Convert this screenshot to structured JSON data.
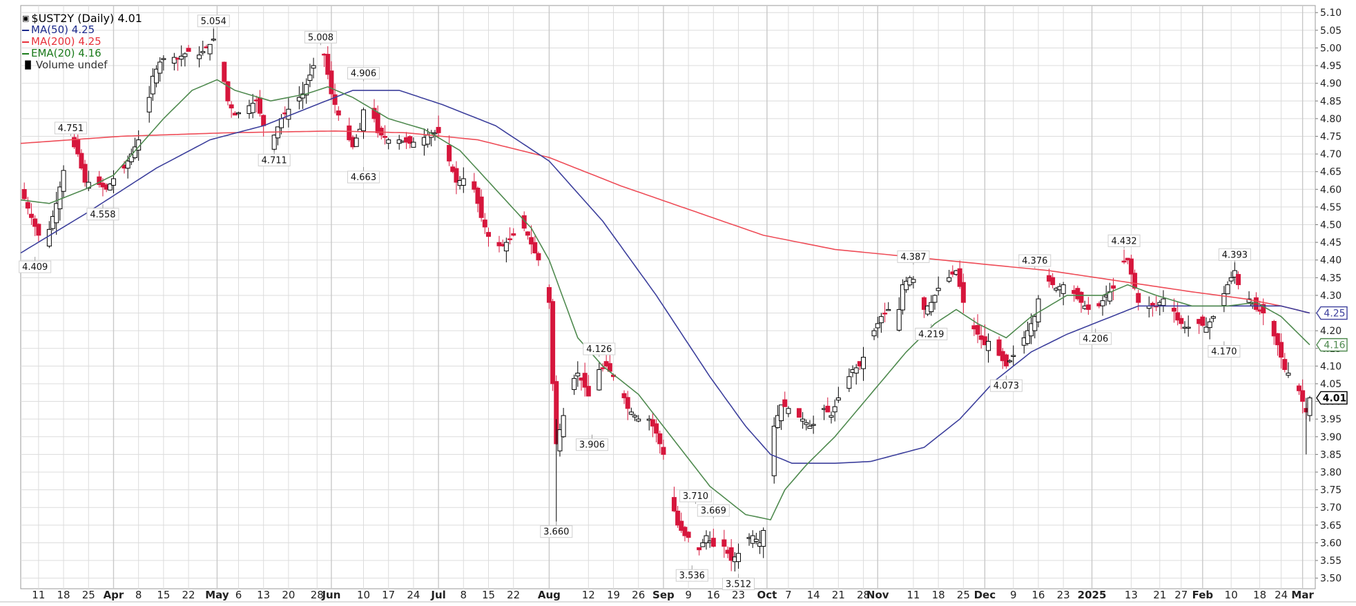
{
  "chart_data": {
    "type": "candlestick",
    "title": "$UST2Y (Daily) 4.01",
    "last_value": "4.01",
    "legend": [
      {
        "name": "MA(50)",
        "value": "4.25",
        "color": "#1c2a8c",
        "kind": "line"
      },
      {
        "name": "MA(200)",
        "value": "4.25",
        "color": "#e8303a",
        "kind": "line"
      },
      {
        "name": "EMA(20)",
        "value": "4.16",
        "color": "#1a7a1a",
        "kind": "line"
      },
      {
        "name": "Volume undef",
        "value": "",
        "color": "#333333",
        "kind": "bars"
      }
    ],
    "colors": {
      "up_candle": "#000000",
      "down_candle": "#d6163c",
      "ma50": "#3c3f9c",
      "ma200": "#ee4c57",
      "ema20": "#4f8a4f",
      "grid": "#dcdcdc",
      "background": "#ffffff"
    },
    "ylim": [
      3.47,
      5.12
    ],
    "y_ticks": [
      "5.10",
      "5.05",
      "5.00",
      "4.95",
      "4.90",
      "4.85",
      "4.80",
      "4.75",
      "4.70",
      "4.65",
      "4.60",
      "4.55",
      "4.50",
      "4.45",
      "4.40",
      "4.35",
      "4.30",
      "4.25",
      "4.20",
      "4.15",
      "4.10",
      "4.05",
      "4.00",
      "3.95",
      "3.90",
      "3.85",
      "3.80",
      "3.75",
      "3.70",
      "3.65",
      "3.60",
      "3.55",
      "3.50"
    ],
    "x_ticks": [
      {
        "label": "11",
        "day": 7,
        "bold": false
      },
      {
        "label": "18",
        "day": 14,
        "bold": false
      },
      {
        "label": "25",
        "day": 21,
        "bold": false
      },
      {
        "label": "Apr",
        "day": 28,
        "bold": true
      },
      {
        "label": "8",
        "day": 35,
        "bold": false
      },
      {
        "label": "15",
        "day": 42,
        "bold": false
      },
      {
        "label": "22",
        "day": 49,
        "bold": false
      },
      {
        "label": "May",
        "day": 57,
        "bold": true
      },
      {
        "label": "6",
        "day": 63,
        "bold": false
      },
      {
        "label": "13",
        "day": 70,
        "bold": false
      },
      {
        "label": "20",
        "day": 77,
        "bold": false
      },
      {
        "label": "28",
        "day": 85,
        "bold": false
      },
      {
        "label": "Jun",
        "day": 89,
        "bold": true
      },
      {
        "label": "10",
        "day": 98,
        "bold": false
      },
      {
        "label": "17",
        "day": 105,
        "bold": false
      },
      {
        "label": "24",
        "day": 112,
        "bold": false
      },
      {
        "label": "Jul",
        "day": 119,
        "bold": true
      },
      {
        "label": "8",
        "day": 126,
        "bold": false
      },
      {
        "label": "15",
        "day": 133,
        "bold": false
      },
      {
        "label": "22",
        "day": 140,
        "bold": false
      },
      {
        "label": "Aug",
        "day": 150,
        "bold": true
      },
      {
        "label": "12",
        "day": 161,
        "bold": false
      },
      {
        "label": "19",
        "day": 168,
        "bold": false
      },
      {
        "label": "26",
        "day": 175,
        "bold": false
      },
      {
        "label": "Sep",
        "day": 182,
        "bold": true
      },
      {
        "label": "9",
        "day": 189,
        "bold": false
      },
      {
        "label": "16",
        "day": 196,
        "bold": false
      },
      {
        "label": "23",
        "day": 203,
        "bold": false
      },
      {
        "label": "Oct",
        "day": 211,
        "bold": true
      },
      {
        "label": "7",
        "day": 217,
        "bold": false
      },
      {
        "label": "14",
        "day": 224,
        "bold": false
      },
      {
        "label": "21",
        "day": 231,
        "bold": false
      },
      {
        "label": "28",
        "day": 238,
        "bold": false
      },
      {
        "label": "Nov",
        "day": 242,
        "bold": true
      },
      {
        "label": "11",
        "day": 252,
        "bold": false
      },
      {
        "label": "18",
        "day": 259,
        "bold": false
      },
      {
        "label": "25",
        "day": 266,
        "bold": false
      },
      {
        "label": "Dec",
        "day": 272,
        "bold": true
      },
      {
        "label": "9",
        "day": 280,
        "bold": false
      },
      {
        "label": "16",
        "day": 287,
        "bold": false
      },
      {
        "label": "23",
        "day": 294,
        "bold": false
      },
      {
        "label": "2025",
        "day": 302,
        "bold": true
      },
      {
        "label": "13",
        "day": 313,
        "bold": false
      },
      {
        "label": "21",
        "day": 321,
        "bold": false
      },
      {
        "label": "27",
        "day": 327,
        "bold": false
      },
      {
        "label": "Feb",
        "day": 333,
        "bold": true
      },
      {
        "label": "10",
        "day": 341,
        "bold": false
      },
      {
        "label": "18",
        "day": 349,
        "bold": false
      },
      {
        "label": "24",
        "day": 355,
        "bold": false
      },
      {
        "label": "Mar",
        "day": 361,
        "bold": true
      }
    ],
    "x_range_days": [
      2,
      363
    ],
    "price_keypoints": [
      [
        2,
        4.6
      ],
      [
        5,
        4.52
      ],
      [
        7,
        4.47
      ],
      [
        9,
        4.45
      ],
      [
        12,
        4.56
      ],
      [
        15,
        4.7
      ],
      [
        16,
        4.74
      ],
      [
        18,
        4.7
      ],
      [
        20,
        4.62
      ],
      [
        23,
        4.62
      ],
      [
        26,
        4.6
      ],
      [
        28,
        4.63
      ],
      [
        31,
        4.66
      ],
      [
        33,
        4.7
      ],
      [
        35,
        4.74
      ],
      [
        37,
        4.8
      ],
      [
        39,
        4.92
      ],
      [
        41,
        4.96
      ],
      [
        43,
        4.98
      ],
      [
        46,
        4.97
      ],
      [
        49,
        4.99
      ],
      [
        52,
        4.98
      ],
      [
        55,
        5.01
      ],
      [
        57,
        5.04
      ],
      [
        58,
        4.96
      ],
      [
        60,
        4.85
      ],
      [
        62,
        4.81
      ],
      [
        65,
        4.83
      ],
      [
        68,
        4.85
      ],
      [
        70,
        4.78
      ],
      [
        72,
        4.73
      ],
      [
        75,
        4.8
      ],
      [
        78,
        4.84
      ],
      [
        81,
        4.87
      ],
      [
        84,
        4.95
      ],
      [
        85,
        4.99
      ],
      [
        87,
        4.98
      ],
      [
        89,
        4.87
      ],
      [
        92,
        4.78
      ],
      [
        95,
        4.72
      ],
      [
        97,
        4.77
      ],
      [
        99,
        4.88
      ],
      [
        102,
        4.76
      ],
      [
        105,
        4.74
      ],
      [
        108,
        4.74
      ],
      [
        111,
        4.73
      ],
      [
        114,
        4.74
      ],
      [
        117,
        4.76
      ],
      [
        119,
        4.76
      ],
      [
        122,
        4.68
      ],
      [
        124,
        4.62
      ],
      [
        126,
        4.63
      ],
      [
        129,
        4.6
      ],
      [
        131,
        4.52
      ],
      [
        134,
        4.44
      ],
      [
        137,
        4.44
      ],
      [
        140,
        4.47
      ],
      [
        142,
        4.51
      ],
      [
        144,
        4.47
      ],
      [
        146,
        4.42
      ],
      [
        148,
        4.38
      ],
      [
        150,
        4.28
      ],
      [
        151,
        4.05
      ],
      [
        152,
        3.88
      ],
      [
        154,
        3.96
      ],
      [
        156,
        4.05
      ],
      [
        158,
        4.08
      ],
      [
        160,
        4.04
      ],
      [
        162,
        3.99
      ],
      [
        164,
        4.09
      ],
      [
        166,
        4.1
      ],
      [
        168,
        4.07
      ],
      [
        170,
        4.04
      ],
      [
        172,
        3.98
      ],
      [
        175,
        3.95
      ],
      [
        178,
        3.95
      ],
      [
        180,
        3.91
      ],
      [
        182,
        3.85
      ],
      [
        184,
        3.73
      ],
      [
        186,
        3.65
      ],
      [
        188,
        3.62
      ],
      [
        190,
        3.61
      ],
      [
        192,
        3.58
      ],
      [
        194,
        3.62
      ],
      [
        196,
        3.59
      ],
      [
        199,
        3.59
      ],
      [
        201,
        3.55
      ],
      [
        203,
        3.57
      ],
      [
        205,
        3.61
      ],
      [
        207,
        3.62
      ],
      [
        209,
        3.6
      ],
      [
        211,
        3.67
      ],
      [
        213,
        3.93
      ],
      [
        215,
        3.99
      ],
      [
        217,
        3.98
      ],
      [
        219,
        3.96
      ],
      [
        221,
        3.95
      ],
      [
        223,
        3.93
      ],
      [
        225,
        3.94
      ],
      [
        227,
        3.98
      ],
      [
        229,
        3.96
      ],
      [
        231,
        4.01
      ],
      [
        233,
        4.05
      ],
      [
        235,
        4.09
      ],
      [
        237,
        4.1
      ],
      [
        239,
        4.15
      ],
      [
        241,
        4.2
      ],
      [
        243,
        4.24
      ],
      [
        245,
        4.26
      ],
      [
        247,
        4.19
      ],
      [
        249,
        4.33
      ],
      [
        251,
        4.35
      ],
      [
        253,
        4.34
      ],
      [
        255,
        4.26
      ],
      [
        257,
        4.28
      ],
      [
        259,
        4.32
      ],
      [
        261,
        4.34
      ],
      [
        263,
        4.36
      ],
      [
        264,
        4.37
      ],
      [
        266,
        4.28
      ],
      [
        268,
        4.22
      ],
      [
        270,
        4.19
      ],
      [
        272,
        4.16
      ],
      [
        274,
        4.18
      ],
      [
        276,
        4.13
      ],
      [
        278,
        4.1
      ],
      [
        280,
        4.13
      ],
      [
        282,
        4.16
      ],
      [
        284,
        4.2
      ],
      [
        286,
        4.24
      ],
      [
        288,
        4.34
      ],
      [
        290,
        4.34
      ],
      [
        292,
        4.32
      ],
      [
        294,
        4.33
      ],
      [
        296,
        4.32
      ],
      [
        298,
        4.29
      ],
      [
        300,
        4.27
      ],
      [
        302,
        4.25
      ],
      [
        304,
        4.27
      ],
      [
        306,
        4.3
      ],
      [
        308,
        4.32
      ],
      [
        310,
        4.39
      ],
      [
        312,
        4.4
      ],
      [
        314,
        4.32
      ],
      [
        316,
        4.24
      ],
      [
        318,
        4.27
      ],
      [
        320,
        4.27
      ],
      [
        322,
        4.29
      ],
      [
        324,
        4.28
      ],
      [
        326,
        4.23
      ],
      [
        328,
        4.21
      ],
      [
        330,
        4.21
      ],
      [
        332,
        4.22
      ],
      [
        334,
        4.21
      ],
      [
        336,
        4.24
      ],
      [
        338,
        4.28
      ],
      [
        340,
        4.33
      ],
      [
        342,
        4.37
      ],
      [
        344,
        4.29
      ],
      [
        346,
        4.29
      ],
      [
        348,
        4.26
      ],
      [
        350,
        4.25
      ],
      [
        352,
        4.21
      ],
      [
        354,
        4.16
      ],
      [
        356,
        4.09
      ],
      [
        358,
        4.07
      ],
      [
        360,
        4.03
      ],
      [
        362,
        3.97
      ],
      [
        363,
        4.01
      ]
    ],
    "ma50_keypoints": [
      [
        2,
        4.42
      ],
      [
        20,
        4.53
      ],
      [
        40,
        4.66
      ],
      [
        55,
        4.74
      ],
      [
        70,
        4.78
      ],
      [
        85,
        4.84
      ],
      [
        95,
        4.88
      ],
      [
        108,
        4.88
      ],
      [
        120,
        4.84
      ],
      [
        135,
        4.78
      ],
      [
        150,
        4.68
      ],
      [
        165,
        4.51
      ],
      [
        180,
        4.3
      ],
      [
        195,
        4.07
      ],
      [
        205,
        3.93
      ],
      [
        212,
        3.85
      ],
      [
        218,
        3.825
      ],
      [
        230,
        3.825
      ],
      [
        240,
        3.83
      ],
      [
        255,
        3.87
      ],
      [
        265,
        3.95
      ],
      [
        275,
        4.06
      ],
      [
        285,
        4.14
      ],
      [
        295,
        4.19
      ],
      [
        305,
        4.23
      ],
      [
        315,
        4.27
      ],
      [
        330,
        4.27
      ],
      [
        345,
        4.27
      ],
      [
        355,
        4.27
      ],
      [
        363,
        4.25
      ]
    ],
    "ma200_keypoints": [
      [
        2,
        4.73
      ],
      [
        30,
        4.75
      ],
      [
        60,
        4.76
      ],
      [
        90,
        4.765
      ],
      [
        110,
        4.76
      ],
      [
        130,
        4.74
      ],
      [
        150,
        4.69
      ],
      [
        170,
        4.61
      ],
      [
        190,
        4.54
      ],
      [
        210,
        4.47
      ],
      [
        230,
        4.43
      ],
      [
        250,
        4.41
      ],
      [
        270,
        4.39
      ],
      [
        290,
        4.37
      ],
      [
        310,
        4.34
      ],
      [
        330,
        4.31
      ],
      [
        345,
        4.29
      ],
      [
        355,
        4.27
      ],
      [
        363,
        4.25
      ]
    ],
    "ema20_keypoints": [
      [
        2,
        4.57
      ],
      [
        10,
        4.56
      ],
      [
        20,
        4.6
      ],
      [
        28,
        4.64
      ],
      [
        35,
        4.72
      ],
      [
        42,
        4.8
      ],
      [
        50,
        4.88
      ],
      [
        57,
        4.91
      ],
      [
        62,
        4.88
      ],
      [
        72,
        4.85
      ],
      [
        82,
        4.87
      ],
      [
        88,
        4.89
      ],
      [
        95,
        4.86
      ],
      [
        105,
        4.8
      ],
      [
        115,
        4.77
      ],
      [
        125,
        4.71
      ],
      [
        135,
        4.6
      ],
      [
        145,
        4.49
      ],
      [
        150,
        4.4
      ],
      [
        158,
        4.18
      ],
      [
        165,
        4.1
      ],
      [
        175,
        4.02
      ],
      [
        185,
        3.89
      ],
      [
        195,
        3.76
      ],
      [
        205,
        3.68
      ],
      [
        212,
        3.665
      ],
      [
        216,
        3.75
      ],
      [
        222,
        3.82
      ],
      [
        230,
        3.9
      ],
      [
        240,
        4.02
      ],
      [
        250,
        4.14
      ],
      [
        258,
        4.22
      ],
      [
        264,
        4.26
      ],
      [
        270,
        4.22
      ],
      [
        278,
        4.18
      ],
      [
        285,
        4.24
      ],
      [
        295,
        4.3
      ],
      [
        305,
        4.3
      ],
      [
        312,
        4.33
      ],
      [
        320,
        4.3
      ],
      [
        330,
        4.27
      ],
      [
        340,
        4.27
      ],
      [
        348,
        4.28
      ],
      [
        355,
        4.24
      ],
      [
        363,
        4.16
      ]
    ],
    "peak_labels": [
      {
        "text": "4.751",
        "day": 16,
        "value": 4.751,
        "pos": "above"
      },
      {
        "text": "4.409",
        "day": 6,
        "value": 4.409,
        "pos": "below"
      },
      {
        "text": "4.558",
        "day": 25,
        "value": 4.558,
        "pos": "below"
      },
      {
        "text": "5.054",
        "day": 56,
        "value": 5.054,
        "pos": "above"
      },
      {
        "text": "5.008",
        "day": 86,
        "value": 5.008,
        "pos": "above"
      },
      {
        "text": "4.711",
        "day": 73,
        "value": 4.711,
        "pos": "below"
      },
      {
        "text": "4.906",
        "day": 98,
        "value": 4.906,
        "pos": "above"
      },
      {
        "text": "4.663",
        "day": 98,
        "value": 4.663,
        "pos": "below"
      },
      {
        "text": "4.126",
        "day": 164,
        "value": 4.126,
        "pos": "above"
      },
      {
        "text": "3.906",
        "day": 162,
        "value": 3.906,
        "pos": "below"
      },
      {
        "text": "3.660",
        "day": 152,
        "value": 3.66,
        "pos": "below"
      },
      {
        "text": "3.710",
        "day": 191,
        "value": 3.71,
        "pos": "above"
      },
      {
        "text": "3.669",
        "day": 196,
        "value": 3.669,
        "pos": "above"
      },
      {
        "text": "3.536",
        "day": 190,
        "value": 3.536,
        "pos": "below"
      },
      {
        "text": "3.512",
        "day": 203,
        "value": 3.512,
        "pos": "below"
      },
      {
        "text": "4.387",
        "day": 252,
        "value": 4.387,
        "pos": "above"
      },
      {
        "text": "4.219",
        "day": 257,
        "value": 4.219,
        "pos": "below"
      },
      {
        "text": "4.376",
        "day": 286,
        "value": 4.376,
        "pos": "above"
      },
      {
        "text": "4.073",
        "day": 278,
        "value": 4.073,
        "pos": "below"
      },
      {
        "text": "4.432",
        "day": 311,
        "value": 4.432,
        "pos": "above"
      },
      {
        "text": "4.206",
        "day": 303,
        "value": 4.206,
        "pos": "below"
      },
      {
        "text": "4.393",
        "day": 342,
        "value": 4.393,
        "pos": "above"
      },
      {
        "text": "4.170",
        "day": 339,
        "value": 4.17,
        "pos": "below"
      }
    ],
    "axis_badges": [
      {
        "text": "4.25",
        "value": 4.25,
        "color": "#3c3f9c",
        "bold": false
      },
      {
        "text": "4.16",
        "value": 4.16,
        "color": "#4f8a4f",
        "bold": false
      },
      {
        "text": "4.01",
        "value": 4.01,
        "color": "#000000",
        "bold": true
      }
    ],
    "grid": true
  }
}
